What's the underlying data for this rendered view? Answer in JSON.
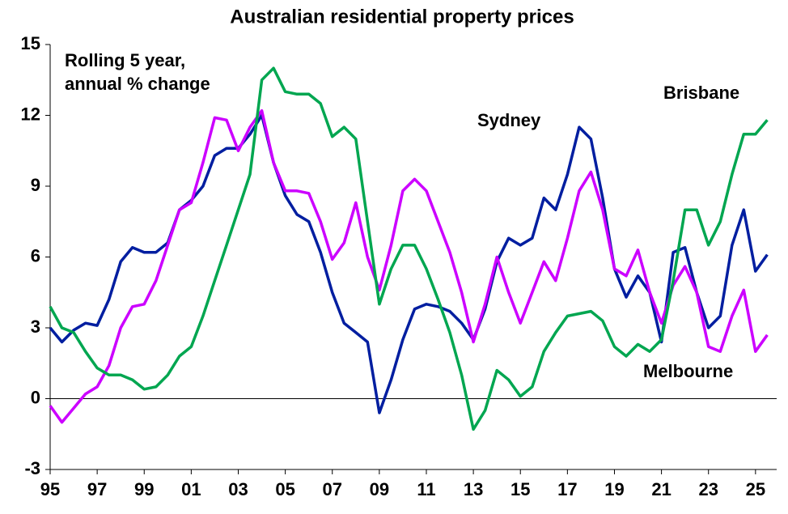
{
  "chart_data": {
    "type": "line",
    "title": "Australian residential property prices",
    "annotation": [
      "Rolling 5 year,",
      "annual % change"
    ],
    "x": [
      1995,
      1995.5,
      1996,
      1996.5,
      1997,
      1997.5,
      1998,
      1998.5,
      1999,
      1999.5,
      2000,
      2000.5,
      2001,
      2001.5,
      2002,
      2002.5,
      2003,
      2003.5,
      2004,
      2004.5,
      2005,
      2005.5,
      2006,
      2006.5,
      2007,
      2007.5,
      2008,
      2008.5,
      2009,
      2009.5,
      2010,
      2010.5,
      2011,
      2011.5,
      2012,
      2012.5,
      2013,
      2013.5,
      2014,
      2014.5,
      2015,
      2015.5,
      2016,
      2016.5,
      2017,
      2017.5,
      2018,
      2018.5,
      2019,
      2019.5,
      2020,
      2020.5,
      2021,
      2021.5,
      2022,
      2022.5,
      2023,
      2023.5,
      2024,
      2024.5,
      2025,
      2025.5
    ],
    "series": [
      {
        "name": "Sydney",
        "color": "#001ea0",
        "values": [
          3.0,
          2.4,
          2.9,
          3.2,
          3.1,
          4.2,
          5.8,
          6.4,
          6.2,
          6.2,
          6.6,
          8.0,
          8.4,
          9.0,
          10.3,
          10.6,
          10.6,
          11.2,
          12.0,
          10.0,
          8.6,
          7.8,
          7.5,
          6.2,
          4.5,
          3.2,
          2.8,
          2.4,
          -0.6,
          0.8,
          2.5,
          3.8,
          4.0,
          3.9,
          3.7,
          3.2,
          2.5,
          3.8,
          5.8,
          6.8,
          6.5,
          6.8,
          8.5,
          8.0,
          9.5,
          11.5,
          11.0,
          8.5,
          5.5,
          4.3,
          5.2,
          4.5,
          2.4,
          6.2,
          6.4,
          4.5,
          3.0,
          3.5,
          6.5,
          8.0,
          5.4,
          6.1
        ]
      },
      {
        "name": "Melbourne",
        "color": "#cc00ff",
        "values": [
          -0.3,
          -1.0,
          -0.4,
          0.2,
          0.5,
          1.4,
          3.0,
          3.9,
          4.0,
          5.0,
          6.5,
          8.0,
          8.3,
          10.0,
          11.9,
          11.8,
          10.5,
          11.5,
          12.2,
          10.0,
          8.8,
          8.8,
          8.7,
          7.5,
          5.9,
          6.6,
          8.3,
          6.0,
          4.6,
          6.5,
          8.8,
          9.3,
          8.8,
          7.5,
          6.2,
          4.5,
          2.4,
          4.0,
          6.0,
          4.5,
          3.2,
          4.5,
          5.8,
          5.0,
          6.8,
          8.8,
          9.6,
          8.0,
          5.5,
          5.2,
          6.3,
          4.5,
          3.2,
          4.8,
          5.6,
          4.5,
          2.2,
          2.0,
          3.5,
          4.6,
          2.0,
          2.7
        ]
      },
      {
        "name": "Brisbane",
        "color": "#00a650",
        "values": [
          3.9,
          3.0,
          2.8,
          2.0,
          1.3,
          1.0,
          1.0,
          0.8,
          0.4,
          0.5,
          1.0,
          1.8,
          2.2,
          3.5,
          5.0,
          6.5,
          8.0,
          9.5,
          13.5,
          14.0,
          13.0,
          12.9,
          12.9,
          12.5,
          11.1,
          11.5,
          11.0,
          7.5,
          4.0,
          5.5,
          6.5,
          6.5,
          5.5,
          4.2,
          2.8,
          1.0,
          -1.3,
          -0.5,
          1.2,
          0.8,
          0.1,
          0.5,
          2.0,
          2.8,
          3.5,
          3.6,
          3.7,
          3.3,
          2.2,
          1.8,
          2.3,
          2.0,
          2.5,
          5.0,
          8.0,
          8.0,
          6.5,
          7.5,
          9.5,
          11.2,
          11.2,
          11.8
        ]
      }
    ],
    "xlim": [
      1995,
      2025.9
    ],
    "xticks": [
      {
        "value": 1995,
        "label": "95"
      },
      {
        "value": 1997,
        "label": "97"
      },
      {
        "value": 1999,
        "label": "99"
      },
      {
        "value": 2001,
        "label": "01"
      },
      {
        "value": 2003,
        "label": "03"
      },
      {
        "value": 2005,
        "label": "05"
      },
      {
        "value": 2007,
        "label": "07"
      },
      {
        "value": 2009,
        "label": "09"
      },
      {
        "value": 2011,
        "label": "11"
      },
      {
        "value": 2013,
        "label": "13"
      },
      {
        "value": 2015,
        "label": "15"
      },
      {
        "value": 2017,
        "label": "17"
      },
      {
        "value": 2019,
        "label": "19"
      },
      {
        "value": 2021,
        "label": "21"
      },
      {
        "value": 2023,
        "label": "23"
      },
      {
        "value": 2025,
        "label": "25"
      }
    ],
    "ylim": [
      -3,
      15
    ],
    "yticks": [
      -3,
      0,
      3,
      6,
      9,
      12,
      15
    ],
    "grid": false
  }
}
